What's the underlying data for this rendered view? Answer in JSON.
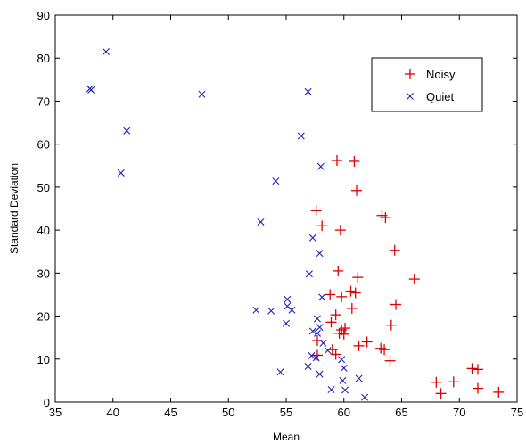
{
  "chart_data": {
    "type": "scatter",
    "title": "",
    "xlabel": "Mean",
    "ylabel": "Standard Deviation",
    "xlim": [
      35,
      75
    ],
    "ylim": [
      0,
      90
    ],
    "xticks": [
      "35",
      "40",
      "45",
      "50",
      "55",
      "60",
      "65",
      "70",
      "75"
    ],
    "yticks": [
      "0",
      "10",
      "20",
      "30",
      "40",
      "50",
      "60",
      "70",
      "80",
      "90"
    ],
    "grid": false,
    "legend_position": "top-right",
    "series": [
      {
        "name": "Noisy",
        "marker": "plus",
        "color": "#dd0000",
        "points": [
          [
            59.4,
            56.2
          ],
          [
            60.9,
            56.0
          ],
          [
            61.1,
            49.2
          ],
          [
            57.6,
            44.5
          ],
          [
            63.3,
            43.4
          ],
          [
            63.6,
            42.9
          ],
          [
            58.1,
            41.0
          ],
          [
            59.7,
            40.0
          ],
          [
            64.4,
            35.3
          ],
          [
            66.1,
            28.6
          ],
          [
            59.5,
            30.5
          ],
          [
            61.2,
            29.0
          ],
          [
            61.0,
            25.4
          ],
          [
            60.6,
            25.8
          ],
          [
            58.8,
            25.0
          ],
          [
            59.8,
            24.5
          ],
          [
            64.5,
            22.7
          ],
          [
            60.7,
            21.8
          ],
          [
            59.3,
            20.3
          ],
          [
            58.9,
            18.6
          ],
          [
            64.1,
            17.9
          ],
          [
            59.8,
            16.8
          ],
          [
            60.1,
            17.2
          ],
          [
            59.6,
            16.0
          ],
          [
            60.0,
            15.8
          ],
          [
            62.0,
            14.0
          ],
          [
            57.7,
            14.3
          ],
          [
            61.3,
            13.1
          ],
          [
            59.0,
            12.2
          ],
          [
            63.2,
            12.5
          ],
          [
            63.5,
            12.2
          ],
          [
            59.3,
            11.1
          ],
          [
            57.7,
            10.9
          ],
          [
            64.0,
            9.6
          ],
          [
            71.1,
            7.8
          ],
          [
            71.6,
            7.6
          ],
          [
            68.0,
            4.6
          ],
          [
            69.5,
            4.7
          ],
          [
            71.6,
            3.2
          ],
          [
            73.4,
            2.3
          ],
          [
            68.4,
            2.0
          ]
        ]
      },
      {
        "name": "Quiet",
        "marker": "x",
        "color": "#2222bb",
        "points": [
          [
            39.4,
            81.5
          ],
          [
            38.0,
            72.9
          ],
          [
            38.1,
            72.6
          ],
          [
            47.7,
            71.6
          ],
          [
            56.9,
            72.2
          ],
          [
            41.2,
            63.1
          ],
          [
            56.3,
            61.9
          ],
          [
            58.0,
            54.8
          ],
          [
            40.7,
            53.3
          ],
          [
            54.1,
            51.4
          ],
          [
            52.8,
            41.9
          ],
          [
            57.3,
            38.2
          ],
          [
            57.9,
            34.6
          ],
          [
            57.0,
            29.8
          ],
          [
            58.1,
            24.4
          ],
          [
            55.1,
            23.9
          ],
          [
            55.1,
            22.3
          ],
          [
            55.5,
            21.4
          ],
          [
            52.4,
            21.4
          ],
          [
            53.7,
            21.2
          ],
          [
            57.7,
            19.4
          ],
          [
            57.9,
            17.4
          ],
          [
            55.0,
            18.3
          ],
          [
            57.3,
            16.5
          ],
          [
            57.7,
            16.0
          ],
          [
            58.2,
            13.7
          ],
          [
            58.6,
            12.0
          ],
          [
            57.2,
            10.8
          ],
          [
            57.6,
            10.3
          ],
          [
            59.8,
            9.9
          ],
          [
            60.0,
            7.9
          ],
          [
            56.9,
            8.3
          ],
          [
            54.5,
            7.0
          ],
          [
            57.9,
            6.5
          ],
          [
            61.3,
            5.5
          ],
          [
            59.9,
            5.0
          ],
          [
            58.9,
            2.9
          ],
          [
            60.1,
            2.8
          ],
          [
            61.8,
            1.1
          ]
        ]
      }
    ]
  }
}
